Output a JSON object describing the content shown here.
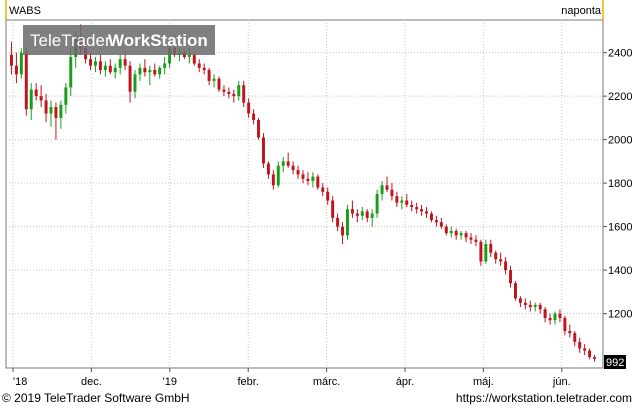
{
  "header": {
    "symbol": "WABS",
    "period": "naponta",
    "watermark_a": "TeleTrader",
    "watermark_b": "WorkStation"
  },
  "footer": {
    "copyright": "© 2019 TeleTrader Software GmbH",
    "url": "https://workstation.teletrader.com"
  },
  "colors": {
    "up": "#1a9e1a",
    "down": "#c0141e",
    "grid": "#c8c8c8",
    "accent_line": "#e8b400",
    "period_text": "#1a9e1a"
  },
  "chart_data": {
    "type": "candlestick",
    "ylim": [
      950,
      2550
    ],
    "yticks": [
      1200,
      1400,
      1600,
      1800,
      2000,
      2200,
      2400
    ],
    "last_price": "992",
    "x_labels": [
      "'18",
      "dec.",
      "'19",
      "febr.",
      "márc.",
      "ápr.",
      "máj.",
      "jún."
    ],
    "grid": true,
    "candles": [
      [
        2390,
        2450,
        2300,
        2340
      ],
      [
        2340,
        2400,
        2260,
        2300
      ],
      [
        2300,
        2420,
        2280,
        2400
      ],
      [
        2400,
        2420,
        2110,
        2140
      ],
      [
        2140,
        2260,
        2090,
        2230
      ],
      [
        2230,
        2260,
        2180,
        2200
      ],
      [
        2200,
        2250,
        2150,
        2180
      ],
      [
        2180,
        2210,
        2080,
        2120
      ],
      [
        2120,
        2180,
        2060,
        2150
      ],
      [
        2150,
        2170,
        2000,
        2100
      ],
      [
        2100,
        2180,
        2050,
        2160
      ],
      [
        2160,
        2260,
        2120,
        2240
      ],
      [
        2240,
        2420,
        2200,
        2380
      ],
      [
        2380,
        2500,
        2330,
        2470
      ],
      [
        2470,
        2530,
        2390,
        2420
      ],
      [
        2420,
        2460,
        2350,
        2370
      ],
      [
        2370,
        2400,
        2320,
        2340
      ],
      [
        2340,
        2380,
        2310,
        2360
      ],
      [
        2360,
        2390,
        2300,
        2320
      ],
      [
        2320,
        2360,
        2290,
        2340
      ],
      [
        2340,
        2370,
        2300,
        2310
      ],
      [
        2310,
        2350,
        2280,
        2330
      ],
      [
        2330,
        2390,
        2300,
        2370
      ],
      [
        2370,
        2410,
        2320,
        2340
      ],
      [
        2340,
        2360,
        2170,
        2220
      ],
      [
        2220,
        2320,
        2190,
        2300
      ],
      [
        2300,
        2350,
        2270,
        2330
      ],
      [
        2330,
        2370,
        2290,
        2310
      ],
      [
        2310,
        2340,
        2250,
        2320
      ],
      [
        2320,
        2350,
        2290,
        2300
      ],
      [
        2300,
        2340,
        2280,
        2330
      ],
      [
        2330,
        2380,
        2300,
        2350
      ],
      [
        2350,
        2440,
        2330,
        2420
      ],
      [
        2420,
        2480,
        2380,
        2390
      ],
      [
        2390,
        2420,
        2360,
        2400
      ],
      [
        2400,
        2410,
        2370,
        2380
      ],
      [
        2380,
        2420,
        2350,
        2390
      ],
      [
        2390,
        2400,
        2340,
        2350
      ],
      [
        2350,
        2370,
        2310,
        2330
      ],
      [
        2330,
        2350,
        2300,
        2320
      ],
      [
        2320,
        2330,
        2250,
        2270
      ],
      [
        2270,
        2300,
        2240,
        2280
      ],
      [
        2280,
        2290,
        2220,
        2230
      ],
      [
        2230,
        2250,
        2200,
        2220
      ],
      [
        2220,
        2240,
        2190,
        2210
      ],
      [
        2210,
        2230,
        2170,
        2200
      ],
      [
        2200,
        2270,
        2180,
        2250
      ],
      [
        2250,
        2270,
        2150,
        2170
      ],
      [
        2170,
        2190,
        2100,
        2120
      ],
      [
        2120,
        2140,
        2070,
        2090
      ],
      [
        2090,
        2100,
        2000,
        2010
      ],
      [
        2010,
        2030,
        1870,
        1890
      ],
      [
        1890,
        1900,
        1820,
        1840
      ],
      [
        1840,
        1860,
        1770,
        1790
      ],
      [
        1790,
        1900,
        1780,
        1880
      ],
      [
        1880,
        1920,
        1850,
        1900
      ],
      [
        1900,
        1940,
        1870,
        1880
      ],
      [
        1880,
        1900,
        1840,
        1860
      ],
      [
        1860,
        1880,
        1820,
        1840
      ],
      [
        1840,
        1860,
        1800,
        1820
      ],
      [
        1820,
        1850,
        1790,
        1810
      ],
      [
        1810,
        1850,
        1780,
        1830
      ],
      [
        1830,
        1840,
        1770,
        1780
      ],
      [
        1780,
        1800,
        1740,
        1760
      ],
      [
        1760,
        1780,
        1700,
        1720
      ],
      [
        1720,
        1740,
        1620,
        1640
      ],
      [
        1640,
        1660,
        1580,
        1600
      ],
      [
        1600,
        1620,
        1520,
        1560
      ],
      [
        1560,
        1700,
        1540,
        1680
      ],
      [
        1680,
        1720,
        1640,
        1660
      ],
      [
        1660,
        1680,
        1620,
        1650
      ],
      [
        1650,
        1690,
        1630,
        1670
      ],
      [
        1670,
        1680,
        1620,
        1640
      ],
      [
        1640,
        1680,
        1600,
        1660
      ],
      [
        1660,
        1770,
        1640,
        1750
      ],
      [
        1750,
        1810,
        1720,
        1790
      ],
      [
        1790,
        1830,
        1760,
        1770
      ],
      [
        1770,
        1800,
        1720,
        1740
      ],
      [
        1740,
        1760,
        1690,
        1710
      ],
      [
        1710,
        1740,
        1680,
        1720
      ],
      [
        1720,
        1750,
        1690,
        1700
      ],
      [
        1700,
        1720,
        1670,
        1690
      ],
      [
        1690,
        1710,
        1660,
        1680
      ],
      [
        1680,
        1700,
        1650,
        1670
      ],
      [
        1670,
        1690,
        1640,
        1660
      ],
      [
        1660,
        1670,
        1620,
        1630
      ],
      [
        1630,
        1650,
        1600,
        1620
      ],
      [
        1620,
        1640,
        1590,
        1600
      ],
      [
        1600,
        1610,
        1560,
        1570
      ],
      [
        1570,
        1600,
        1550,
        1580
      ],
      [
        1580,
        1590,
        1540,
        1560
      ],
      [
        1560,
        1580,
        1540,
        1570
      ],
      [
        1570,
        1580,
        1530,
        1550
      ],
      [
        1550,
        1570,
        1520,
        1540
      ],
      [
        1540,
        1560,
        1510,
        1530
      ],
      [
        1530,
        1540,
        1420,
        1440
      ],
      [
        1440,
        1540,
        1430,
        1520
      ],
      [
        1520,
        1540,
        1460,
        1480
      ],
      [
        1480,
        1490,
        1430,
        1450
      ],
      [
        1450,
        1480,
        1420,
        1440
      ],
      [
        1440,
        1460,
        1380,
        1400
      ],
      [
        1400,
        1420,
        1320,
        1340
      ],
      [
        1340,
        1350,
        1260,
        1270
      ],
      [
        1270,
        1280,
        1230,
        1250
      ],
      [
        1250,
        1270,
        1220,
        1240
      ],
      [
        1240,
        1260,
        1210,
        1230
      ],
      [
        1230,
        1250,
        1210,
        1240
      ],
      [
        1240,
        1250,
        1200,
        1220
      ],
      [
        1220,
        1230,
        1160,
        1180
      ],
      [
        1180,
        1200,
        1150,
        1170
      ],
      [
        1170,
        1210,
        1150,
        1200
      ],
      [
        1200,
        1220,
        1160,
        1180
      ],
      [
        1180,
        1190,
        1100,
        1120
      ],
      [
        1120,
        1150,
        1090,
        1110
      ],
      [
        1110,
        1120,
        1050,
        1070
      ],
      [
        1070,
        1090,
        1020,
        1040
      ],
      [
        1040,
        1060,
        1010,
        1030
      ],
      [
        1030,
        1040,
        990,
        1000
      ],
      [
        1000,
        1010,
        980,
        992
      ]
    ]
  }
}
